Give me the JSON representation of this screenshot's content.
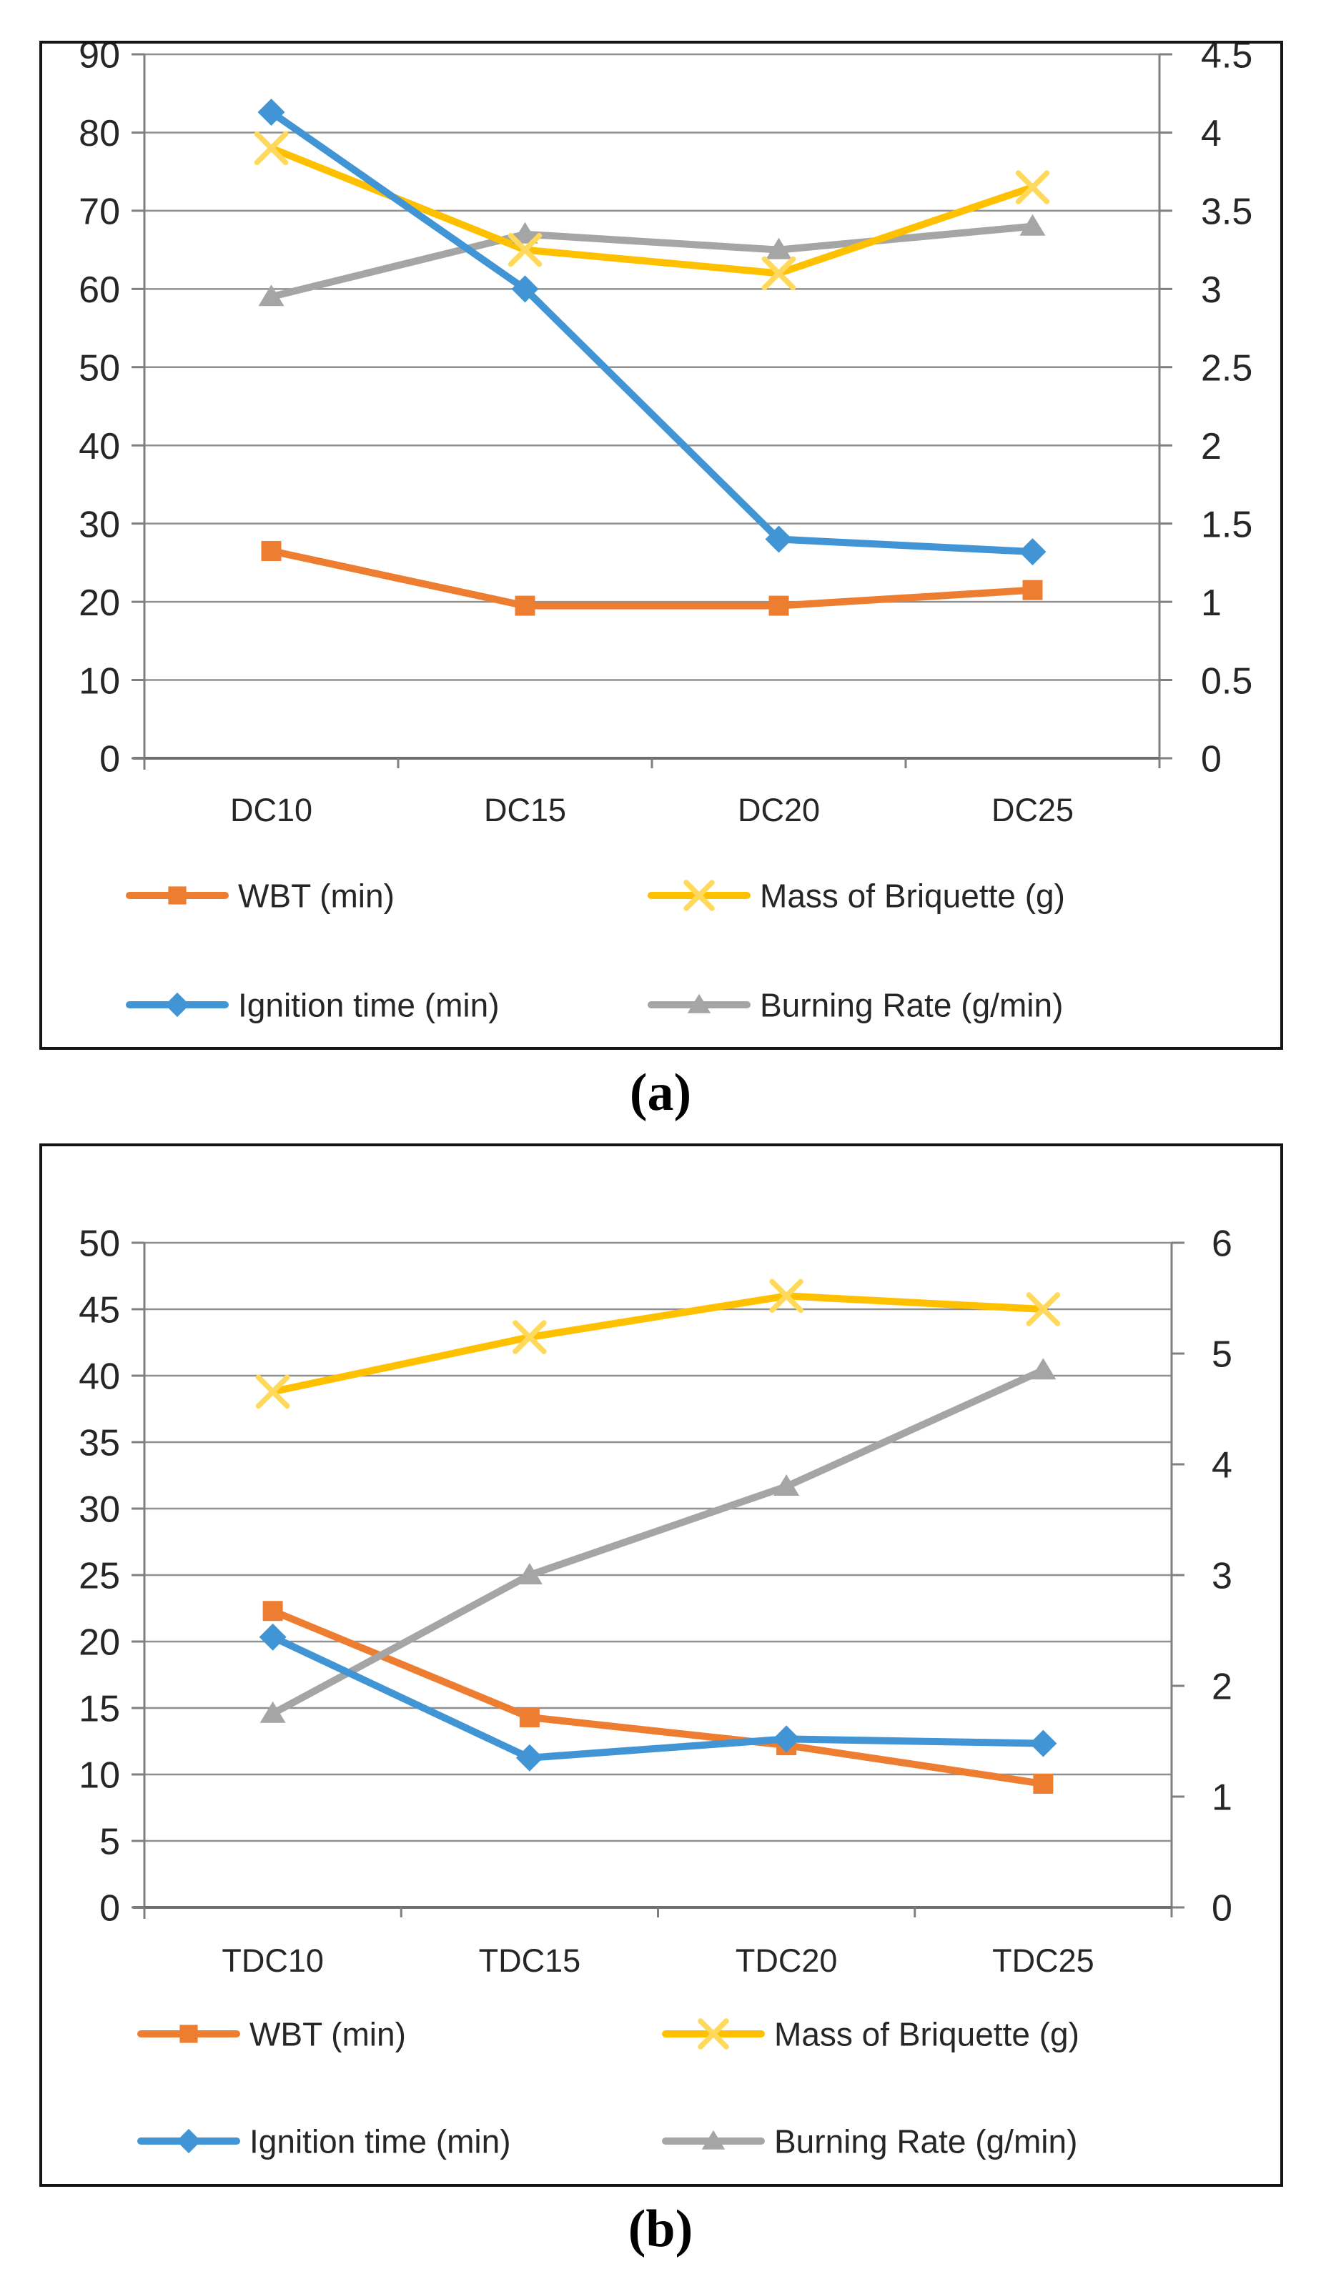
{
  "captions": {
    "a": "(a)",
    "b": "(b)"
  },
  "colors": {
    "orange": "#ED7D31",
    "yellow": "#FFC000",
    "yellow_x_marker": "#FFD95C",
    "blue": "#4295D5",
    "gray": "#A5A5A5",
    "gridline": "#8F8F8F",
    "axis_line": "#7F7F7F",
    "bottom_axis_line": "#6E6E6E",
    "text": "#262626",
    "figure_border": "#141414"
  },
  "chart_data": [
    {
      "id": "a",
      "type": "line",
      "caption": "(a)",
      "grid": true,
      "legend_position": "bottom-two-columns",
      "categories": [
        "DC10",
        "DC15",
        "DC20",
        "DC25"
      ],
      "left_axis": {
        "min": 0,
        "max": 90,
        "step": 10,
        "tick_labels": [
          "90",
          "80",
          "70",
          "60",
          "50",
          "40",
          "30",
          "20",
          "10",
          "0"
        ]
      },
      "right_axis": {
        "min": 0,
        "max": 4.5,
        "step": 0.5,
        "tick_labels": [
          "4.5",
          "4",
          "3.5",
          "3",
          "2.5",
          "2",
          "1.5",
          "1",
          "0.5",
          "0"
        ]
      },
      "series": [
        {
          "name": "WBT (min)",
          "axis": "left",
          "marker": "square",
          "color_key": "orange",
          "values": [
            26.5,
            19.5,
            19.5,
            21.5
          ]
        },
        {
          "name": "Mass of Briquette (g)",
          "axis": "left",
          "marker": "x",
          "color_key": "yellow",
          "values": [
            78,
            65,
            62,
            73
          ]
        },
        {
          "name": "Ignition time (min)",
          "axis": "right",
          "marker": "diamond",
          "color_key": "blue",
          "values": [
            4.13,
            3.0,
            1.4,
            1.32
          ]
        },
        {
          "name": "Burning Rate (g/min)",
          "axis": "right",
          "marker": "triangle",
          "color_key": "gray",
          "values": [
            2.95,
            3.35,
            3.25,
            3.4
          ]
        }
      ],
      "legend": [
        [
          "WBT (min)",
          "Mass of Briquette (g)"
        ],
        [
          "Ignition time (min)",
          "Burning Rate (g/min)"
        ]
      ]
    },
    {
      "id": "b",
      "type": "line",
      "caption": "(b)",
      "grid": true,
      "legend_position": "bottom-two-columns",
      "categories": [
        "TDC10",
        "TDC15",
        "TDC20",
        "TDC25"
      ],
      "left_axis": {
        "min": 0,
        "max": 50,
        "step": 5,
        "tick_labels": [
          "50",
          "45",
          "40",
          "35",
          "30",
          "25",
          "20",
          "15",
          "10",
          "5",
          "0"
        ]
      },
      "right_axis": {
        "min": 0,
        "max": 6,
        "step": 1,
        "tick_labels": [
          "6",
          "5",
          "4",
          "3",
          "2",
          "1",
          "0"
        ]
      },
      "series": [
        {
          "name": "WBT (min)",
          "axis": "left",
          "marker": "square",
          "color_key": "orange",
          "values": [
            22.3,
            14.3,
            12.2,
            9.3
          ]
        },
        {
          "name": "Mass of Briquette (g)",
          "axis": "left",
          "marker": "x",
          "color_key": "yellow",
          "values": [
            38.8,
            42.9,
            46,
            45
          ]
        },
        {
          "name": "Ignition time (min)",
          "axis": "right",
          "marker": "diamond",
          "color_key": "blue",
          "values": [
            2.44,
            1.35,
            1.52,
            1.48
          ]
        },
        {
          "name": "Burning Rate (g/min)",
          "axis": "right",
          "marker": "triangle",
          "color_key": "gray",
          "values": [
            1.75,
            3.0,
            3.8,
            4.85
          ]
        }
      ],
      "legend": [
        [
          "WBT (min)",
          "Mass of Briquette (g)"
        ],
        [
          "Ignition time (min)",
          "Burning Rate (g/min)"
        ]
      ]
    }
  ]
}
